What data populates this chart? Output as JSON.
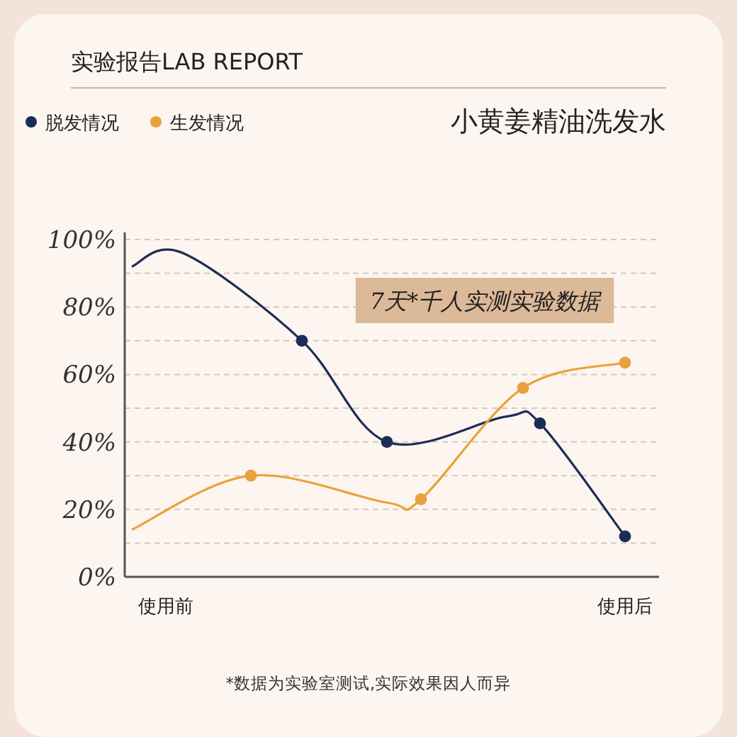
{
  "chart_data": {
    "type": "line",
    "title": "实验报告LAB REPORT",
    "subtitle": "小黄姜精油洗发水",
    "series": [
      {
        "name": "脱发情况",
        "color": "#1c2d55",
        "values": [
          92,
          null,
          null,
          96,
          null,
          null,
          null,
          null,
          null,
          null,
          70,
          null,
          null,
          null,
          null,
          40,
          null,
          null,
          null,
          null,
          null,
          null,
          47.5,
          null,
          45.5,
          null,
          null,
          null,
          null,
          12,
          null
        ]
      },
      {
        "name": "生发情况",
        "color": "#e9a23b",
        "values": [
          14,
          null,
          null,
          null,
          null,
          null,
          null,
          30,
          null,
          null,
          null,
          null,
          null,
          null,
          null,
          22,
          null,
          23,
          null,
          null,
          null,
          null,
          null,
          56,
          null,
          null,
          null,
          null,
          null,
          63.5,
          null
        ]
      },
      {
        "type": "scatter",
        "marker": "circle",
        "color": "#1c2d55",
        "values": [
          null,
          null,
          null,
          null,
          null,
          null,
          null,
          null,
          null,
          null,
          70,
          null,
          null,
          null,
          null,
          40,
          null,
          null,
          null,
          null,
          null,
          null,
          null,
          null,
          45.5,
          null,
          null,
          null,
          null,
          12,
          null
        ]
      },
      {
        "type": "scatter",
        "marker": "circle",
        "color": "#e9a23b",
        "values": [
          null,
          null,
          null,
          null,
          null,
          null,
          null,
          30,
          null,
          null,
          null,
          null,
          null,
          null,
          null,
          null,
          null,
          23,
          null,
          null,
          null,
          null,
          null,
          56,
          null,
          null,
          null,
          null,
          null,
          63.5,
          null
        ]
      }
    ],
    "categories": [
      null,
      null,
      "使用前",
      null,
      null,
      null,
      null,
      null,
      null,
      null,
      null,
      null,
      null,
      null,
      null,
      null,
      null,
      null,
      null,
      null,
      null,
      null,
      null,
      null,
      null,
      null,
      null,
      null,
      null,
      "使用后",
      null
    ],
    "ylim": [
      0,
      100
    ],
    "yticks": [
      {
        "value": 0,
        "label": "0%"
      },
      {
        "value": 10,
        "label": null
      },
      {
        "value": 20,
        "label": "20%"
      },
      {
        "value": 30,
        "label": null
      },
      {
        "value": 40,
        "label": "40%"
      },
      {
        "value": 50,
        "label": null
      },
      {
        "value": 60,
        "label": "60%"
      },
      {
        "value": 70,
        "label": null
      },
      {
        "value": 80,
        "label": "80%"
      },
      {
        "value": 90,
        "label": null
      },
      {
        "value": 100,
        "label": "100%"
      }
    ],
    "grid": "y",
    "legend": "top left",
    "marker": "none",
    "line_style": "solid",
    "annotations": [
      "7天*千人实测实验数据",
      "*数据为实验室测试,实际效果因人而异"
    ]
  }
}
